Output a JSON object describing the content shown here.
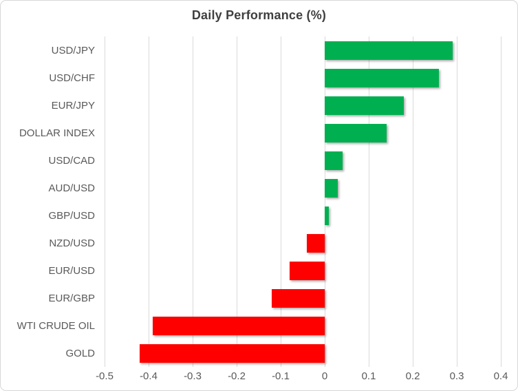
{
  "chart": {
    "title": "Daily Performance (%)"
  },
  "chart_data": {
    "type": "bar",
    "orientation": "horizontal",
    "title": "Daily Performance (%)",
    "categories": [
      "USD/JPY",
      "USD/CHF",
      "EUR/JPY",
      "DOLLAR INDEX",
      "USD/CAD",
      "AUD/USD",
      "GBP/USD",
      "NZD/USD",
      "EUR/USD",
      "EUR/GBP",
      "WTI CRUDE OIL",
      "GOLD"
    ],
    "values": [
      0.29,
      0.26,
      0.18,
      0.14,
      0.04,
      0.03,
      0.01,
      -0.04,
      -0.08,
      -0.12,
      -0.39,
      -0.42
    ],
    "xlim": [
      -0.5,
      0.4
    ],
    "x_ticks": [
      -0.5,
      -0.4,
      -0.3,
      -0.2,
      -0.1,
      0,
      0.1,
      0.2,
      0.3,
      0.4
    ],
    "x_tick_labels": [
      "-0.5",
      "-0.4",
      "-0.3",
      "-0.2",
      "-0.1",
      "0",
      "0.1",
      "0.2",
      "0.3",
      "0.4"
    ],
    "grid": true,
    "legend": false,
    "colors": {
      "positive": "#00B050",
      "negative": "#FF0000",
      "gridline": "#D9D9D9",
      "axis_text": "#595959",
      "title_text": "#3F3F3F"
    }
  }
}
